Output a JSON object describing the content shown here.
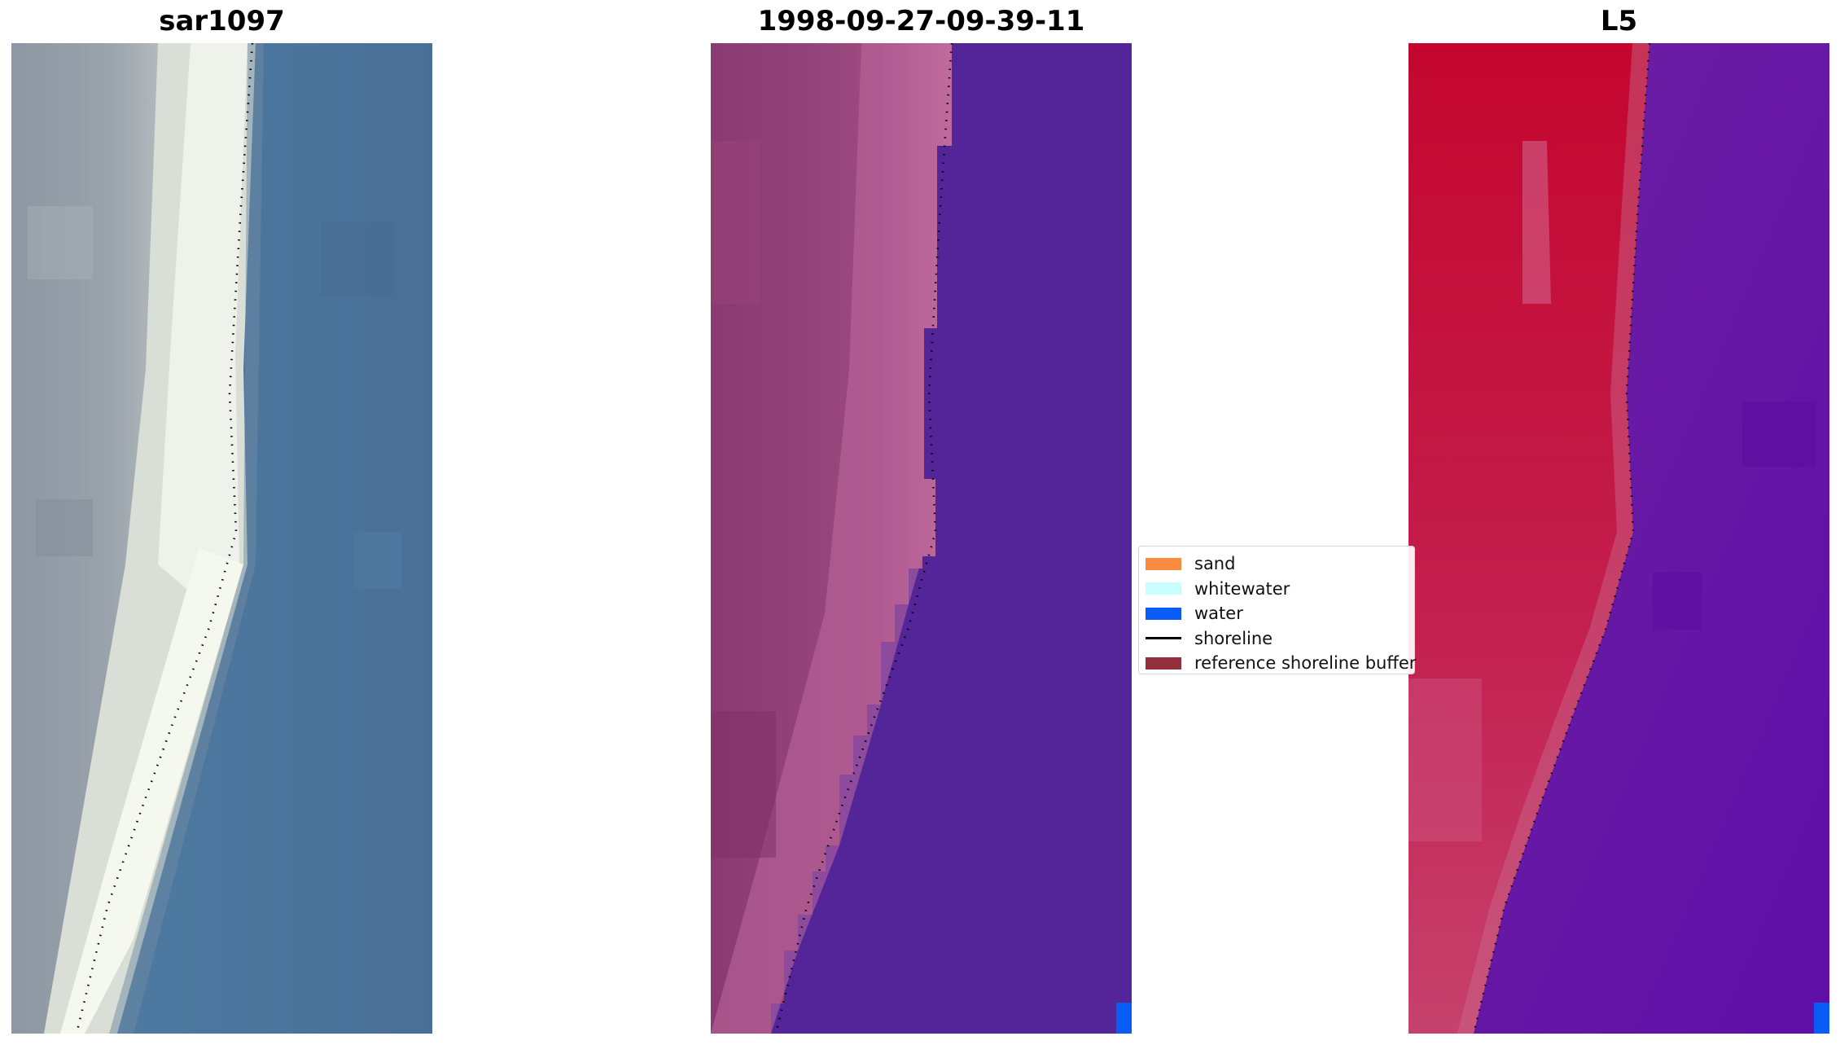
{
  "panels": [
    {
      "title": "sar1097",
      "kind": "rgb-image"
    },
    {
      "title": "1998-09-27-09-39-11",
      "kind": "classified-image"
    },
    {
      "title": "L5",
      "kind": "mndwi-image"
    }
  ],
  "legend": {
    "items": [
      {
        "label": "sand",
        "color": "#f98a3e",
        "type": "patch"
      },
      {
        "label": "whitewater",
        "color": "#c8fefe",
        "type": "patch"
      },
      {
        "label": "water",
        "color": "#0a5cf7",
        "type": "patch"
      },
      {
        "label": "shoreline",
        "color": "#000000",
        "type": "line"
      },
      {
        "label": "reference shoreline buffer",
        "color": "#93303b",
        "type": "patch"
      }
    ]
  }
}
